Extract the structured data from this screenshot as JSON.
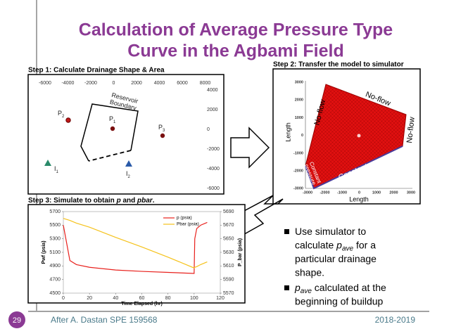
{
  "title": [
    "Calculation of Average Pressure Type",
    "Curve in the Agbami Field"
  ],
  "step1": {
    "label": "Step 1: Calculate Drainage Shape & Area",
    "xticks": [
      -6000,
      -4000,
      -2000,
      0,
      2000,
      4000,
      6000,
      8000
    ],
    "yticks": [
      4000,
      2000,
      0,
      -2000,
      -4000,
      -6000
    ],
    "boundary": [
      "Reservoir",
      "Boundary"
    ],
    "wells": [
      {
        "name": "P",
        "sub": "2"
      },
      {
        "name": "P",
        "sub": "1"
      },
      {
        "name": "P",
        "sub": "3"
      },
      {
        "name": "I",
        "sub": "1"
      },
      {
        "name": "I",
        "sub": "2"
      }
    ]
  },
  "step2": {
    "label": "Step 2: Transfer the model to simulator",
    "xticks": [
      -3000,
      -2000,
      -1000,
      0,
      1000,
      2000,
      3000
    ],
    "yticks": [
      3000,
      2000,
      1000,
      0,
      -1000,
      -2000,
      -3000
    ],
    "xlabel": "Length",
    "ylabel": "Length",
    "no_flow": [
      "No-flow",
      "No-flow",
      "No-flow"
    ],
    "constant_pressure": "Constant pressure",
    "constant_pressure_left": [
      "Constant",
      "pressure"
    ]
  },
  "step3": {
    "label": [
      "Step 3: Simulate to obtain ",
      "p",
      " and ",
      "pbar",
      "."
    ]
  },
  "chart_data": {
    "type": "line",
    "x": [
      0,
      5,
      10,
      20,
      40,
      60,
      80,
      100,
      100.5,
      102,
      105,
      110
    ],
    "series": [
      {
        "name": "p (psia)",
        "color": "#e8201c",
        "values": [
          5500,
          4980,
          4920,
          4880,
          4840,
          4820,
          4805,
          4790,
          5300,
          5450,
          5500,
          5540
        ]
      },
      {
        "name": "Pbar (psia)",
        "color": "#f5c21b",
        "axis": "y2",
        "values": [
          5680,
          5677,
          5673,
          5667,
          5652,
          5638,
          5623,
          5607,
          5608,
          5609,
          5612,
          5616
        ]
      }
    ],
    "xlim": [
      0,
      120
    ],
    "xticks": [
      0,
      20,
      40,
      60,
      80,
      100,
      120
    ],
    "ylim": [
      4500,
      5700
    ],
    "yticks": [
      4500,
      4700,
      4900,
      5100,
      5300,
      5500,
      5700
    ],
    "y2lim": [
      5570,
      5690
    ],
    "y2ticks": [
      5570,
      5590,
      5610,
      5630,
      5650,
      5670,
      5690
    ],
    "xlabel": "Time Elapsed (hr)",
    "ylabel": "Pwf (psia)",
    "y2label": "P_bar (psia)"
  },
  "bullets": [
    [
      [
        "Use simulator to"
      ],
      [
        "calculate ",
        "p",
        "ave",
        " for a"
      ],
      [
        "particular drainage"
      ],
      [
        "shape."
      ]
    ],
    [
      [
        "p",
        "ave",
        " calculated at the"
      ],
      [
        "beginning of buildup"
      ]
    ]
  ],
  "footer": {
    "page": "29",
    "source": "After A. Dastan SPE 159568",
    "year": "2018-2019"
  }
}
